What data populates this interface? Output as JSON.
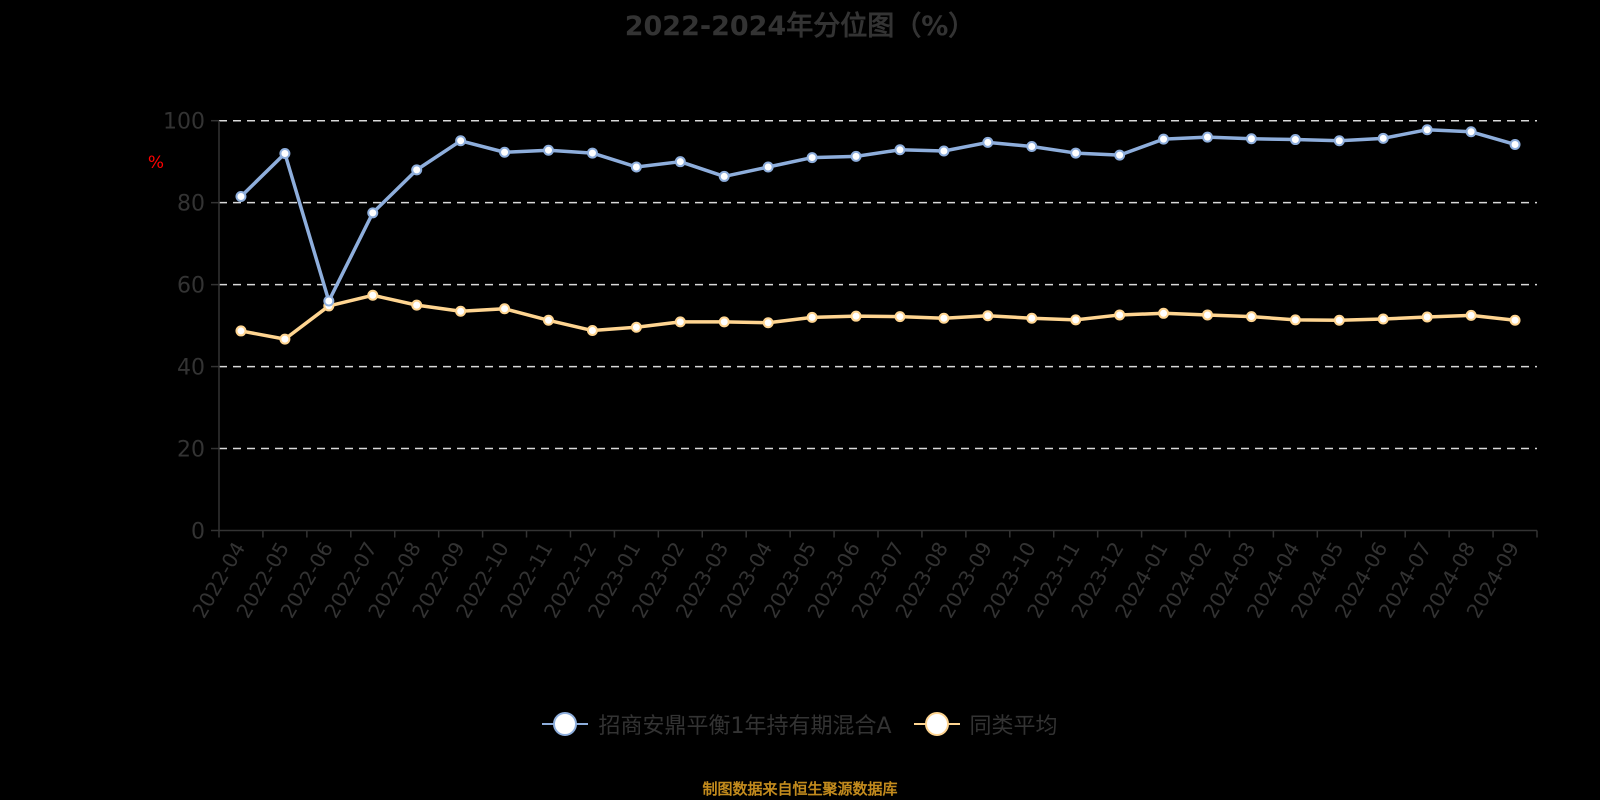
{
  "title": "2022-2024年分位图（%）",
  "footer": "制图数据来自恒生聚源数据库",
  "colors": {
    "background": "#000000",
    "series_fund": "#8eaedc",
    "series_avg": "#ffd591",
    "grid": "#d9d9d9",
    "axis": "#333333",
    "tick_text": "#333333",
    "ylabel": "#ff0000",
    "footer": "#c38b1d"
  },
  "legend": [
    {
      "label": "招商安鼎平衡1年持有期混合A",
      "color": "#8eaedc"
    },
    {
      "label": "同类平均",
      "color": "#ffd591"
    }
  ],
  "chart_data": {
    "type": "line",
    "title": "2022-2024年分位图（%）",
    "xlabel": "",
    "ylabel": "%",
    "ylim": [
      0,
      100
    ],
    "yticks": [
      0,
      20,
      40,
      60,
      80,
      100
    ],
    "grid": true,
    "legend_position": "bottom",
    "categories": [
      "2022-04",
      "2022-05",
      "2022-06",
      "2022-07",
      "2022-08",
      "2022-09",
      "2022-10",
      "2022-11",
      "2022-12",
      "2023-01",
      "2023-02",
      "2023-03",
      "2023-04",
      "2023-05",
      "2023-06",
      "2023-07",
      "2023-08",
      "2023-09",
      "2023-10",
      "2023-11",
      "2023-12",
      "2024-01",
      "2024-02",
      "2024-03",
      "2024-04",
      "2024-05",
      "2024-06",
      "2024-07",
      "2024-08",
      "2024-09"
    ],
    "series": [
      {
        "name": "招商安鼎平衡1年持有期混合A",
        "values": [
          81.5,
          92.0,
          56.0,
          77.5,
          88.0,
          95.1,
          92.3,
          92.8,
          92.1,
          88.7,
          90.0,
          86.4,
          88.7,
          91.0,
          91.3,
          92.9,
          92.6,
          94.7,
          93.7,
          92.1,
          91.6,
          95.5,
          96.0,
          95.6,
          95.4,
          95.1,
          95.7,
          97.8,
          97.3,
          94.2
        ]
      },
      {
        "name": "同类平均",
        "values": [
          48.7,
          46.7,
          54.8,
          57.4,
          55.0,
          53.5,
          54.1,
          51.3,
          48.8,
          49.6,
          50.9,
          50.9,
          50.7,
          52.0,
          52.3,
          52.2,
          51.8,
          52.4,
          51.8,
          51.4,
          52.6,
          53.0,
          52.6,
          52.2,
          51.4,
          51.3,
          51.6,
          52.1,
          52.5,
          51.3
        ]
      }
    ]
  }
}
